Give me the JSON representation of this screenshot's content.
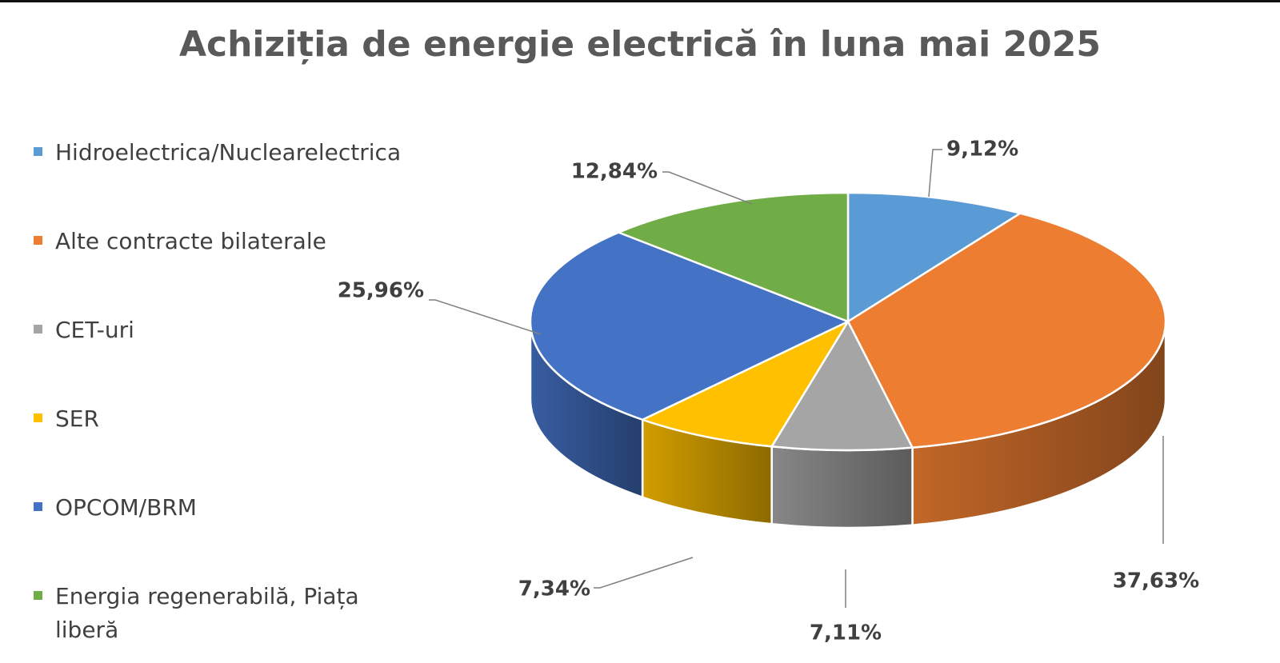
{
  "chart_data": {
    "type": "pie",
    "title": "Achiziția de energie electrică în luna mai 2025",
    "style": "3d",
    "legend_position": "left",
    "slices": [
      {
        "label": "Hidroelectrica/Nuclearelectrica",
        "value": 9.12,
        "value_label": "9,12%",
        "color": "#5B9BD5"
      },
      {
        "label": "Alte contracte bilaterale",
        "value": 37.63,
        "value_label": "37,63%",
        "color": "#ED7D31"
      },
      {
        "label": "CET-uri",
        "value": 7.11,
        "value_label": "7,11%",
        "color": "#A5A5A5"
      },
      {
        "label": "SER",
        "value": 7.34,
        "value_label": "7,34%",
        "color": "#FFC000"
      },
      {
        "label": "OPCOM/BRM",
        "value": 25.96,
        "value_label": "25,96%",
        "color": "#4472C4"
      },
      {
        "label": "Energia regenerabilă, Piața liberă",
        "value": 12.84,
        "value_label": "12,84%",
        "color": "#70AD47"
      }
    ]
  }
}
